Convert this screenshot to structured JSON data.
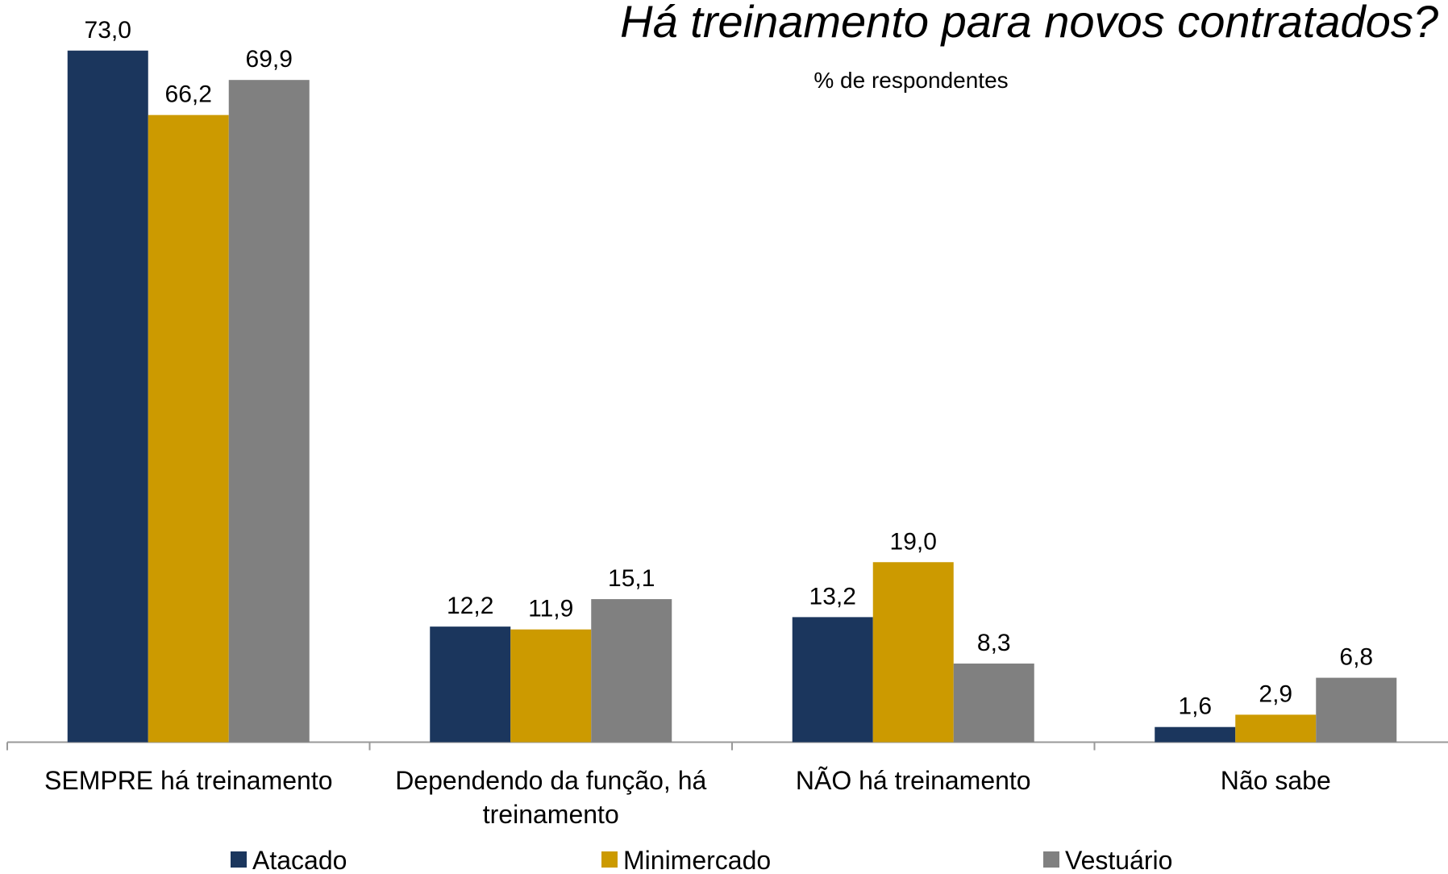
{
  "chart_data": {
    "type": "bar",
    "title": "Há treinamento para novos contratados?",
    "subtitle": "% de respondentes",
    "categories": [
      "SEMPRE há treinamento",
      "Dependendo da função, há treinamento",
      "NÃO há treinamento",
      "Não sabe"
    ],
    "series": [
      {
        "name": "Atacado",
        "color": "#1b365d",
        "values": [
          73.0,
          12.2,
          13.2,
          1.6
        ],
        "value_labels": [
          "73,0",
          "12,2",
          "13,2",
          "1,6"
        ]
      },
      {
        "name": "Minimercado",
        "color": "#cc9a00",
        "values": [
          66.2,
          11.9,
          19.0,
          2.9
        ],
        "value_labels": [
          "66,2",
          "11,9",
          "19,0",
          "2,9"
        ]
      },
      {
        "name": "Vestuário",
        "color": "#808080",
        "values": [
          69.9,
          15.1,
          8.3,
          6.8
        ],
        "value_labels": [
          "69,9",
          "15,1",
          "8,3",
          "6,8"
        ]
      }
    ],
    "legend": "bottom"
  }
}
